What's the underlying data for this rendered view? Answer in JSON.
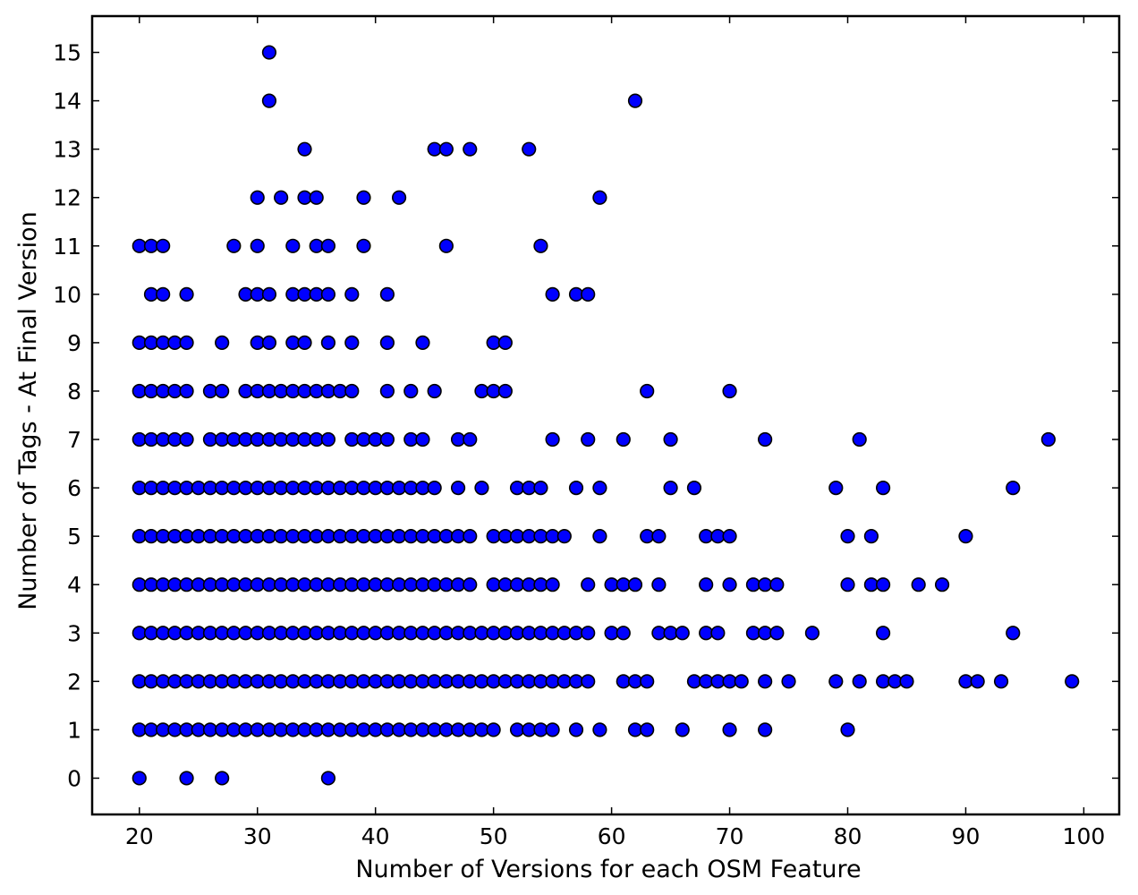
{
  "chart_data": {
    "type": "scatter",
    "title": "",
    "xlabel": "Number of Versions for each OSM Feature",
    "ylabel": "Number of Tags - At Final Version",
    "xlim": [
      16,
      103
    ],
    "ylim": [
      -0.75,
      15.75
    ],
    "xticks": [
      20,
      30,
      40,
      50,
      60,
      70,
      80,
      90,
      100
    ],
    "yticks": [
      0,
      1,
      2,
      3,
      4,
      5,
      6,
      7,
      8,
      9,
      10,
      11,
      12,
      13,
      14,
      15
    ],
    "grid": false,
    "legend": "none",
    "marker_color": "#0000ff",
    "marker_edge_color": "#000000",
    "series": [
      {
        "rows": [
          {
            "y": 0,
            "x": [
              20,
              24,
              27,
              36
            ]
          },
          {
            "y": 1,
            "x": [
              20,
              21,
              22,
              23,
              24,
              25,
              26,
              27,
              28,
              29,
              30,
              31,
              32,
              33,
              34,
              35,
              36,
              37,
              38,
              39,
              40,
              41,
              42,
              43,
              44,
              45,
              46,
              47,
              48,
              49,
              50,
              52,
              53,
              54,
              55,
              57,
              59,
              62,
              63,
              66,
              70,
              73,
              80
            ]
          },
          {
            "y": 2,
            "x": [
              20,
              21,
              22,
              23,
              24,
              25,
              26,
              27,
              28,
              29,
              30,
              31,
              32,
              33,
              34,
              35,
              36,
              37,
              38,
              39,
              40,
              41,
              42,
              43,
              44,
              45,
              46,
              47,
              48,
              49,
              50,
              51,
              52,
              53,
              54,
              55,
              56,
              57,
              58,
              61,
              62,
              63,
              67,
              68,
              69,
              70,
              71,
              73,
              75,
              79,
              81,
              83,
              84,
              85,
              90,
              91,
              93,
              99
            ]
          },
          {
            "y": 3,
            "x": [
              20,
              21,
              22,
              23,
              24,
              25,
              26,
              27,
              28,
              29,
              30,
              31,
              32,
              33,
              34,
              35,
              36,
              37,
              38,
              39,
              40,
              41,
              42,
              43,
              44,
              45,
              46,
              47,
              48,
              49,
              50,
              51,
              52,
              53,
              54,
              55,
              56,
              57,
              58,
              60,
              61,
              64,
              65,
              66,
              68,
              69,
              72,
              73,
              74,
              77,
              83,
              94
            ]
          },
          {
            "y": 4,
            "x": [
              20,
              21,
              22,
              23,
              24,
              25,
              26,
              27,
              28,
              29,
              30,
              31,
              32,
              33,
              34,
              35,
              36,
              37,
              38,
              39,
              40,
              41,
              42,
              43,
              44,
              45,
              46,
              47,
              48,
              50,
              51,
              52,
              53,
              54,
              55,
              58,
              60,
              61,
              62,
              64,
              68,
              70,
              72,
              73,
              74,
              80,
              82,
              83,
              86,
              88
            ]
          },
          {
            "y": 5,
            "x": [
              20,
              21,
              22,
              23,
              24,
              25,
              26,
              27,
              28,
              29,
              30,
              31,
              32,
              33,
              34,
              35,
              36,
              37,
              38,
              39,
              40,
              41,
              42,
              43,
              44,
              45,
              46,
              47,
              48,
              50,
              51,
              52,
              53,
              54,
              55,
              56,
              59,
              63,
              64,
              68,
              69,
              70,
              80,
              82,
              90
            ]
          },
          {
            "y": 6,
            "x": [
              20,
              21,
              22,
              23,
              24,
              25,
              26,
              27,
              28,
              29,
              30,
              31,
              32,
              33,
              34,
              35,
              36,
              37,
              38,
              39,
              40,
              41,
              42,
              43,
              44,
              45,
              47,
              49,
              52,
              53,
              54,
              57,
              59,
              65,
              67,
              79,
              83,
              94
            ]
          },
          {
            "y": 7,
            "x": [
              20,
              21,
              22,
              23,
              24,
              26,
              27,
              28,
              29,
              30,
              31,
              32,
              33,
              34,
              35,
              36,
              38,
              39,
              40,
              41,
              43,
              44,
              47,
              48,
              55,
              58,
              61,
              65,
              73,
              81,
              97
            ]
          },
          {
            "y": 8,
            "x": [
              20,
              21,
              22,
              23,
              24,
              26,
              27,
              29,
              30,
              31,
              32,
              33,
              34,
              35,
              36,
              37,
              38,
              41,
              43,
              45,
              49,
              50,
              51,
              63,
              70
            ]
          },
          {
            "y": 9,
            "x": [
              20,
              21,
              22,
              23,
              24,
              27,
              30,
              31,
              33,
              34,
              36,
              38,
              41,
              44,
              50,
              51
            ]
          },
          {
            "y": 10,
            "x": [
              21,
              22,
              24,
              29,
              30,
              31,
              33,
              34,
              35,
              36,
              38,
              41,
              55,
              57,
              58
            ]
          },
          {
            "y": 11,
            "x": [
              20,
              21,
              22,
              28,
              30,
              33,
              35,
              36,
              39,
              46,
              54
            ]
          },
          {
            "y": 12,
            "x": [
              30,
              32,
              34,
              35,
              39,
              42,
              59
            ]
          },
          {
            "y": 13,
            "x": [
              34,
              45,
              46,
              48,
              53
            ]
          },
          {
            "y": 14,
            "x": [
              31,
              62
            ]
          },
          {
            "y": 15,
            "x": [
              31
            ]
          }
        ]
      }
    ]
  }
}
